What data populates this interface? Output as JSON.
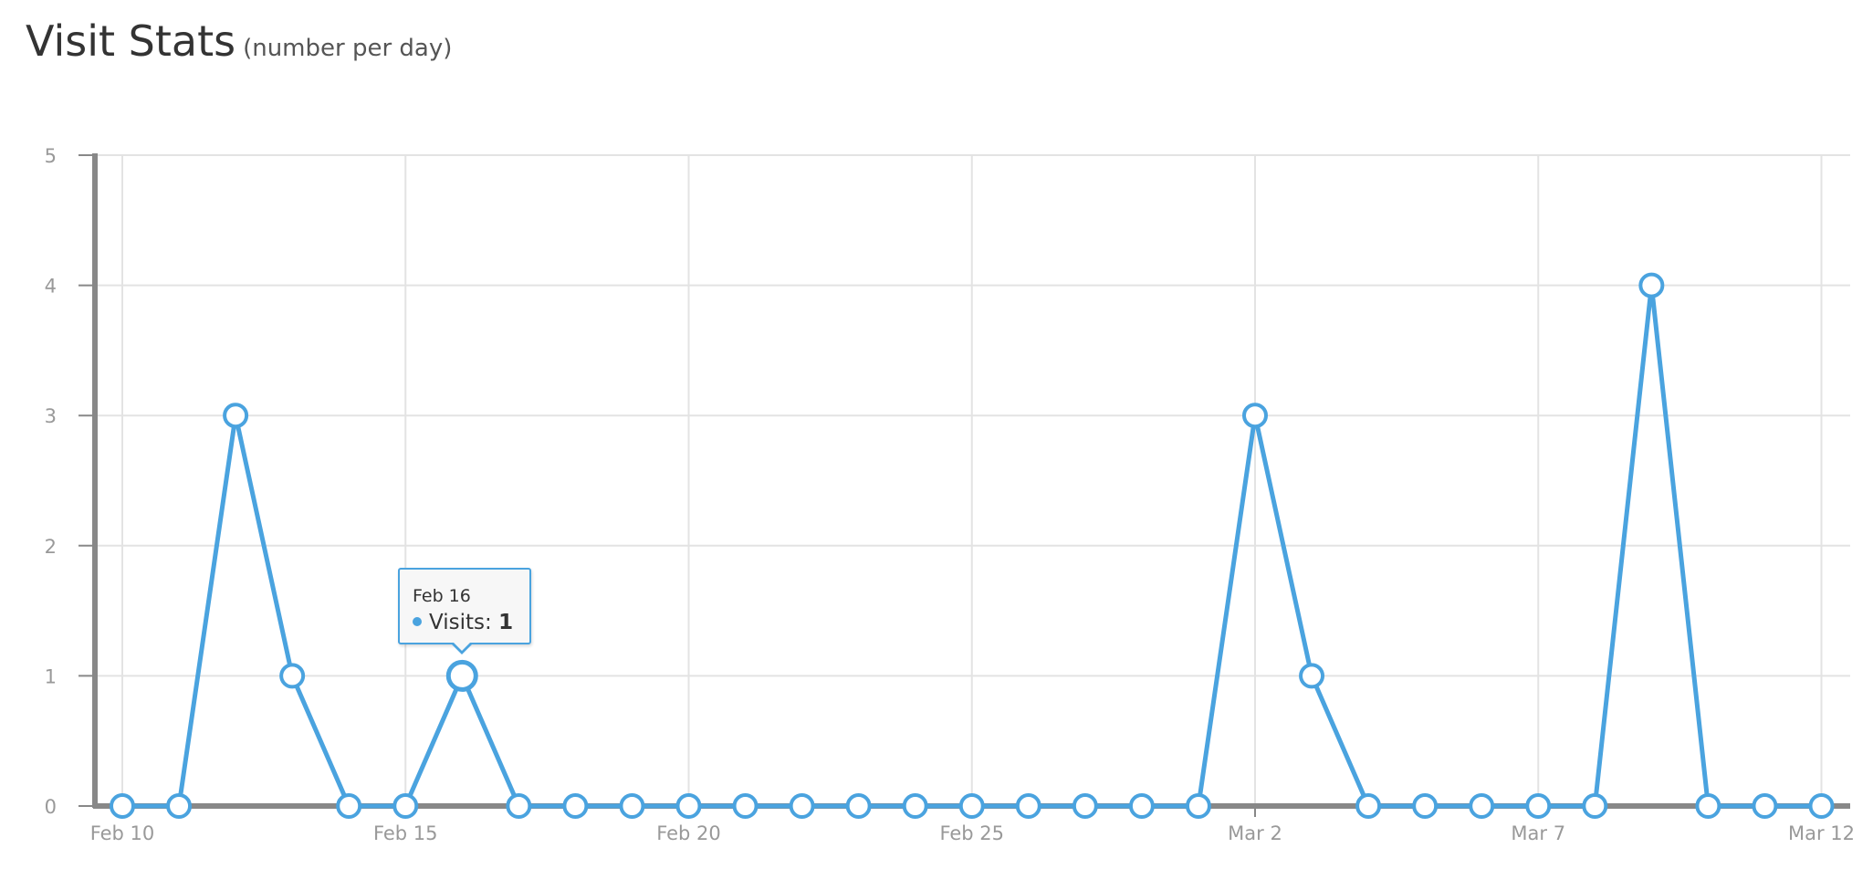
{
  "header": {
    "title": "Visit Stats",
    "subtitle": "(number per day)"
  },
  "tooltip": {
    "date": "Feb 16",
    "series_label": "Visits:",
    "value": "1"
  },
  "colors": {
    "series": "#4aa3df",
    "grid": "#e3e3e3",
    "axis": "#888888",
    "tick_text": "#999999"
  },
  "chart_data": {
    "type": "line",
    "title": "Visit Stats",
    "subtitle": "(number per day)",
    "xlabel": "",
    "ylabel": "",
    "ylim": [
      0,
      5
    ],
    "yticks": [
      "0",
      "1",
      "2",
      "3",
      "4",
      "5"
    ],
    "xticks": [
      "Feb 10",
      "Feb 15",
      "Feb 20",
      "Feb 25",
      "Mar 2",
      "Mar 7",
      "Mar 12"
    ],
    "grid": true,
    "legend": "none",
    "series": [
      {
        "name": "Visits",
        "x": [
          "Feb 10",
          "Feb 11",
          "Feb 12",
          "Feb 13",
          "Feb 14",
          "Feb 15",
          "Feb 16",
          "Feb 17",
          "Feb 18",
          "Feb 19",
          "Feb 20",
          "Feb 21",
          "Feb 22",
          "Feb 23",
          "Feb 24",
          "Feb 25",
          "Feb 26",
          "Feb 27",
          "Feb 28",
          "Mar 1",
          "Mar 2",
          "Mar 3",
          "Mar 4",
          "Mar 5",
          "Mar 6",
          "Mar 7",
          "Mar 8",
          "Mar 9",
          "Mar 10",
          "Mar 11",
          "Mar 12"
        ],
        "values": [
          0,
          0,
          3,
          1,
          0,
          0,
          1,
          0,
          0,
          0,
          0,
          0,
          0,
          0,
          0,
          0,
          0,
          0,
          0,
          0,
          3,
          1,
          0,
          0,
          0,
          0,
          0,
          4,
          0,
          0,
          0
        ]
      }
    ],
    "highlighted_point": "Feb 16"
  }
}
